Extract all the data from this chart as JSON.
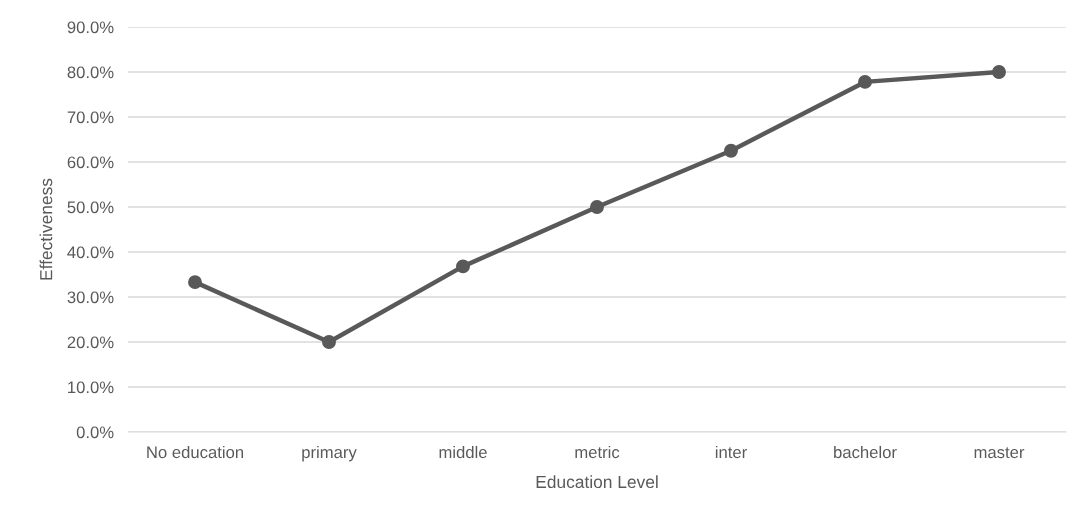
{
  "chart_data": {
    "type": "line",
    "xlabel": "Education Level",
    "ylabel": "Effectiveness",
    "categories": [
      "No education",
      "primary",
      "middle",
      "metric",
      "inter",
      "bachelor",
      "master"
    ],
    "series": [
      {
        "color": "#595959",
        "values": [
          33.3,
          20.0,
          36.8,
          50.0,
          62.5,
          77.8,
          80.0
        ]
      }
    ],
    "ylim": [
      0,
      90
    ],
    "yticks": [
      {
        "value": 0,
        "label": "0.0%"
      },
      {
        "value": 10,
        "label": "10.0%"
      },
      {
        "value": 20,
        "label": "20.0%"
      },
      {
        "value": 30,
        "label": "30.0%"
      },
      {
        "value": 40,
        "label": "40.0%"
      },
      {
        "value": 50,
        "label": "50.0%"
      },
      {
        "value": 60,
        "label": "60.0%"
      },
      {
        "value": 70,
        "label": "70.0%"
      },
      {
        "value": 80,
        "label": "80.0%"
      },
      {
        "value": 90,
        "label": "90.0%"
      }
    ],
    "grid": "y",
    "marker": "circle",
    "line_style": "solid"
  }
}
